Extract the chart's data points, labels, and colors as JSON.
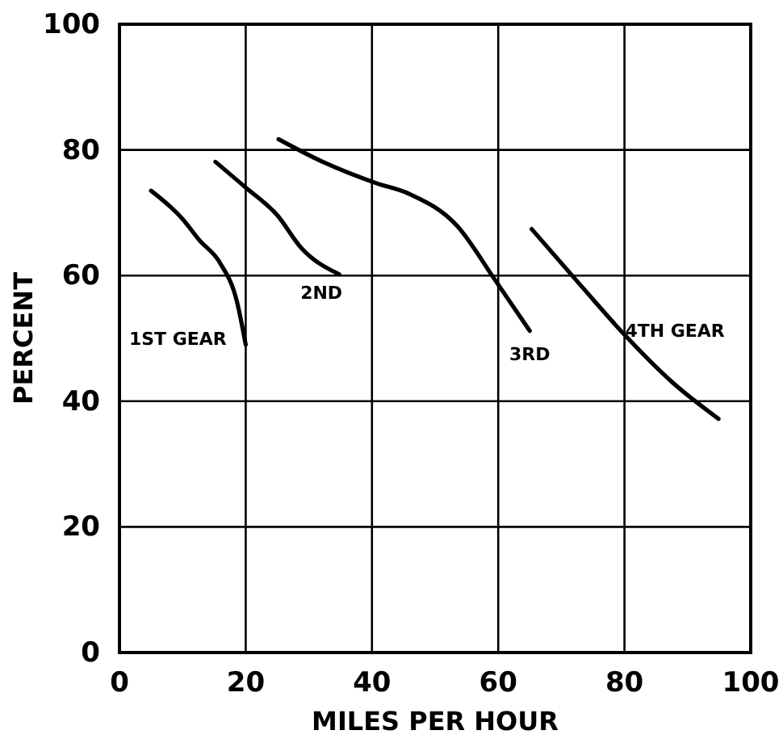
{
  "chart_data": {
    "type": "line",
    "xlabel": "MILES PER HOUR",
    "ylabel": "PERCENT",
    "xlim": [
      0,
      100
    ],
    "ylim": [
      0,
      100
    ],
    "xticks": [
      0,
      20,
      40,
      60,
      80,
      100
    ],
    "yticks": [
      0,
      20,
      40,
      60,
      80,
      100
    ],
    "grid": true,
    "marker": "none",
    "line_style": "solid",
    "series": [
      {
        "name": "1ST GEAR",
        "color": "#000000",
        "x": [
          5,
          10,
          12.6,
          16,
          18.6,
          20
        ],
        "values": [
          73.5,
          69,
          65.7,
          61.9,
          55.9,
          49
        ]
      },
      {
        "name": "2ND",
        "color": "#000000",
        "x": [
          15.2,
          20,
          25,
          28.8,
          34.8
        ],
        "values": [
          78.1,
          74,
          69.6,
          64.4,
          60.2
        ]
      },
      {
        "name": "3RD",
        "color": "#000000",
        "x": [
          25.2,
          32.2,
          40.7,
          45.9,
          53.5,
          59.5,
          65
        ],
        "values": [
          81.7,
          78.1,
          74.7,
          73,
          67.9,
          59.3,
          51.2
        ]
      },
      {
        "name": "4TH GEAR",
        "color": "#000000",
        "x": [
          65.3,
          73.1,
          79.9,
          87.6,
          94.9
        ],
        "values": [
          67.4,
          58.4,
          50.7,
          43,
          37.2
        ]
      }
    ]
  }
}
